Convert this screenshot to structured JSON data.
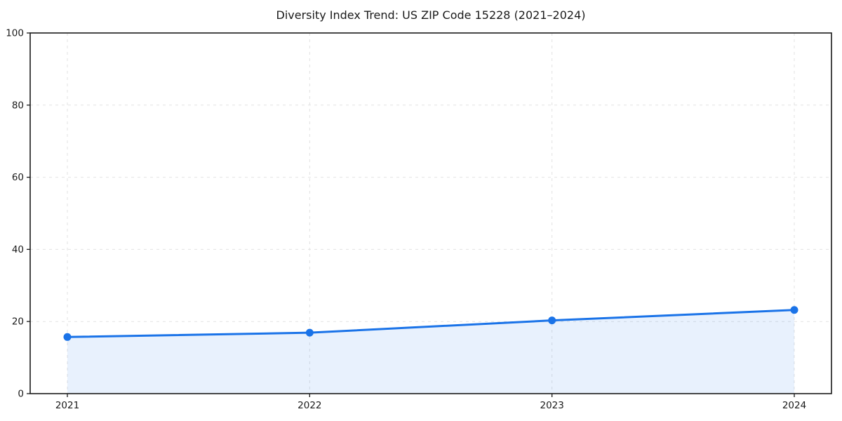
{
  "chart_data": {
    "type": "line",
    "title": "Diversity Index Trend: US ZIP Code 15228 (2021–2024)",
    "categories": [
      "2021",
      "2022",
      "2023",
      "2024"
    ],
    "series": [
      {
        "name": "Diversity Index",
        "values": [
          15.7,
          16.9,
          20.3,
          23.2
        ]
      }
    ],
    "xlabel": "",
    "ylabel": "",
    "ylim": [
      0,
      100
    ],
    "yticks": [
      0,
      20,
      40,
      60,
      80,
      100
    ],
    "grid": true,
    "grid_style": "dashed",
    "legend_position": "none",
    "line_color": "#1a73e8",
    "fill_color": "#1a73e8",
    "fill_opacity": 0.1,
    "marker": "circle",
    "background_color": "#ffffff",
    "text_color": "#1a1a1a"
  }
}
